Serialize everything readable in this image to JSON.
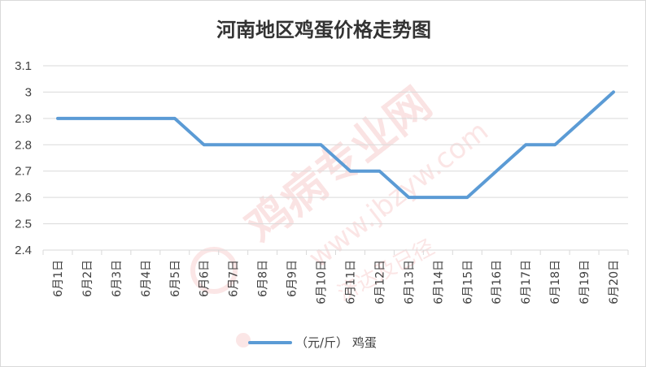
{
  "watermark": {
    "brand": "鸡病专业网",
    "site": "www.jbzyw.com",
    "signature": "济达及已径"
  },
  "colors": {
    "line": "#5b9bd5",
    "grid": "#d9d9d9",
    "watermark": "#e03030"
  },
  "chart_data": {
    "type": "line",
    "title": "河南地区鸡蛋价格走势图",
    "categories": [
      "6月1日",
      "6月2日",
      "6月3日",
      "6月4日",
      "6月5日",
      "6月6日",
      "6月7日",
      "6月8日",
      "6月9日",
      "6月10日",
      "6月11日",
      "6月12日",
      "6月13日",
      "6月14日",
      "6月15日",
      "6月16日",
      "6月17日",
      "6月18日",
      "6月19日",
      "6月20日"
    ],
    "series": [
      {
        "name": "（元/斤） 鸡蛋",
        "values": [
          2.9,
          2.9,
          2.9,
          2.9,
          2.9,
          2.8,
          2.8,
          2.8,
          2.8,
          2.8,
          2.7,
          2.7,
          2.6,
          2.6,
          2.6,
          2.7,
          2.8,
          2.8,
          2.9,
          3.0
        ]
      }
    ],
    "yticks": [
      "2.4",
      "2.5",
      "2.6",
      "2.7",
      "2.8",
      "2.9",
      "3",
      "3.1"
    ],
    "ylim": [
      2.4,
      3.1
    ],
    "grid": true,
    "legend_position": "bottom"
  }
}
